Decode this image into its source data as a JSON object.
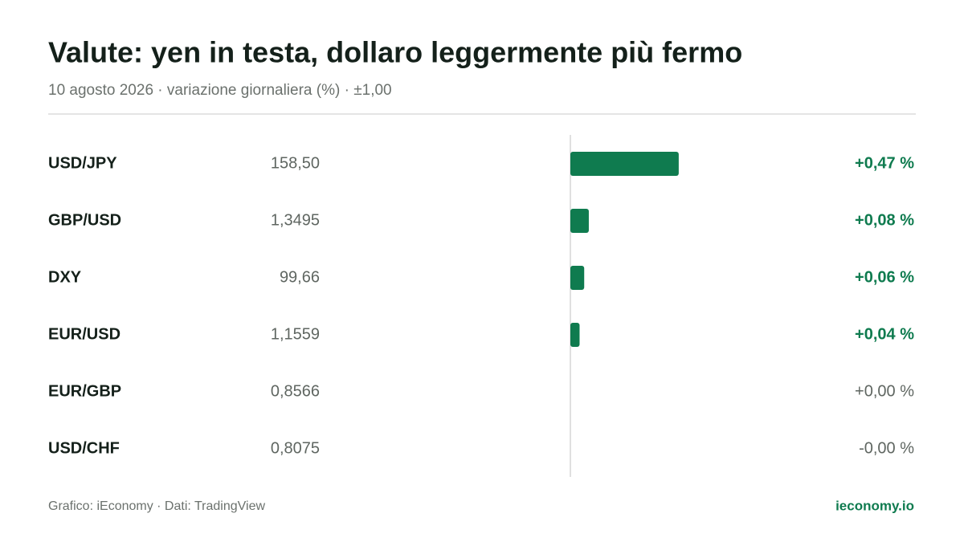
{
  "chart_data": {
    "type": "bar",
    "title": "Valute: yen in testa, dollaro leggermente più fermo",
    "subtitle": "10 agosto 2026 · variazione giornaliera (%) · ±1,00",
    "categories": [
      "USD/JPY",
      "GBP/USD",
      "DXY",
      "EUR/USD",
      "EUR/GBP",
      "USD/CHF"
    ],
    "prices": [
      "158,50",
      "1,3495",
      "99,66",
      "1,1559",
      "0,8566",
      "0,8075"
    ],
    "values": [
      0.47,
      0.08,
      0.06,
      0.04,
      0.0,
      -0.0
    ],
    "value_labels": [
      "+0,47 %",
      "+0,08 %",
      "+0,06 %",
      "+0,04 %",
      "+0,00 %",
      "-0,00 %"
    ],
    "xlim": [
      -1,
      1
    ],
    "color": "#0f7b4f",
    "neutral_color": "#5f6661",
    "source": "Grafico: iEconomy · Dati: TradingView",
    "brand": "ieconomy.io"
  }
}
